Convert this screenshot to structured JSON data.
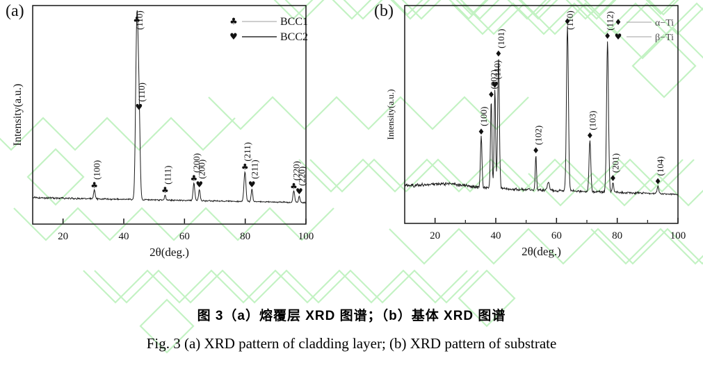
{
  "figure": {
    "panel_a_label": "(a)",
    "panel_b_label": "(b)",
    "caption_zh": "图 3（a）熔覆层 XRD 图谱；（b）基体 XRD 图谱",
    "caption_en": "Fig. 3 (a) XRD pattern of cladding layer; (b) XRD pattern of substrate"
  },
  "colors": {
    "curve": "#1b1b1b",
    "axis": "#151515",
    "text": "#111111",
    "watermark": "#c3f2c3",
    "legend_line_bcc1": "#bdbdbd",
    "legend_line_bcc2": "#2b2b2b",
    "legend_line_alpha_ti": "#9f9f9f",
    "legend_line_beta_ti": "#9f9f9f",
    "legend_label_b": "#4a4a4a"
  },
  "chart_data": [
    {
      "type": "line",
      "panel": "(a)",
      "title": "",
      "xlabel": "2θ(deg.)",
      "ylabel": "Intensity(a.u.)",
      "xlim": [
        10,
        100
      ],
      "xticks": [
        20,
        40,
        60,
        80,
        100
      ],
      "minor_xticks": [],
      "yticks": [],
      "grid": false,
      "legend": {
        "position": "top-right",
        "entries": [
          {
            "symbol": "♣",
            "label": "BCC1"
          },
          {
            "symbol": "♥",
            "label": "BCC2"
          }
        ]
      },
      "peaks": [
        {
          "two_theta": 30.3,
          "rel_intensity": 0.05,
          "width_deg": 0.35,
          "hkl": "(100)",
          "phase_symbol": "♣",
          "phase": "BCC1"
        },
        {
          "two_theta": 44.3,
          "rel_intensity": 1.0,
          "width_deg": 0.55,
          "hkl": "(110)",
          "phase_symbol": "♣",
          "phase": "BCC1"
        },
        {
          "two_theta": 45.0,
          "rel_intensity": 0.5,
          "width_deg": 0.5,
          "hkl": "(110)",
          "phase_symbol": "♥",
          "phase": "BCC2"
        },
        {
          "two_theta": 53.6,
          "rel_intensity": 0.03,
          "width_deg": 0.3,
          "hkl": "(111)",
          "phase_symbol": "♣",
          "phase": "BCC1"
        },
        {
          "two_theta": 63.1,
          "rel_intensity": 0.1,
          "width_deg": 0.4,
          "hkl": "(200)",
          "phase_symbol": "♣",
          "phase": "BCC1"
        },
        {
          "two_theta": 64.9,
          "rel_intensity": 0.065,
          "width_deg": 0.35,
          "hkl": "(200)",
          "phase_symbol": "♥",
          "phase": "BCC2"
        },
        {
          "two_theta": 79.9,
          "rel_intensity": 0.17,
          "width_deg": 0.45,
          "hkl": "(211)",
          "phase_symbol": "♣",
          "phase": "BCC1"
        },
        {
          "two_theta": 82.2,
          "rel_intensity": 0.07,
          "width_deg": 0.35,
          "hkl": "(211)",
          "phase_symbol": "♥",
          "phase": "BCC2"
        },
        {
          "two_theta": 96.0,
          "rel_intensity": 0.065,
          "width_deg": 0.4,
          "hkl": "(220)",
          "phase_symbol": "♣",
          "phase": "BCC1"
        },
        {
          "two_theta": 97.8,
          "rel_intensity": 0.035,
          "width_deg": 0.35,
          "hkl": "(220)",
          "phase_symbol": "♥",
          "phase": "BCC2"
        }
      ]
    },
    {
      "type": "line",
      "panel": "(b)",
      "title": "",
      "xlabel": "2θ(deg.)",
      "ylabel": "Intensity(a.u.)",
      "xlim": [
        10,
        100
      ],
      "xticks": [
        20,
        40,
        60,
        80,
        100
      ],
      "minor_xticks": [
        30,
        50,
        70,
        90
      ],
      "yticks": [],
      "grid": false,
      "legend": {
        "position": "top-right",
        "entries": [
          {
            "symbol": "♦",
            "label": "α−Ti"
          },
          {
            "symbol": "♥",
            "label": "β−Ti"
          }
        ]
      },
      "peaks": [
        {
          "two_theta": 35.2,
          "rel_intensity": 0.31,
          "width_deg": 0.35,
          "hkl": "(100)",
          "phase_symbol": "♦",
          "phase": "α-Ti"
        },
        {
          "two_theta": 38.5,
          "rel_intensity": 0.54,
          "width_deg": 0.35,
          "hkl": "(002)",
          "phase_symbol": "♦",
          "phase": "α-Ti"
        },
        {
          "two_theta": 39.7,
          "rel_intensity": 0.6,
          "width_deg": 0.35,
          "hkl": "(110)",
          "phase_symbol": "♥",
          "phase": "β-Ti"
        },
        {
          "two_theta": 40.9,
          "rel_intensity": 0.79,
          "width_deg": 0.4,
          "hkl": "(101)",
          "phase_symbol": "♦",
          "phase": "α-Ti"
        },
        {
          "two_theta": 53.2,
          "rel_intensity": 0.21,
          "width_deg": 0.3,
          "hkl": "(102)",
          "phase_symbol": "♦",
          "phase": "α-Ti"
        },
        {
          "two_theta": 57.3,
          "rel_intensity": 0.05,
          "width_deg": 0.5,
          "hkl": "",
          "phase_symbol": "",
          "phase": ""
        },
        {
          "two_theta": 63.6,
          "rel_intensity": 1.0,
          "width_deg": 0.45,
          "hkl": "(110)",
          "phase_symbol": "♦",
          "phase": "α-Ti"
        },
        {
          "two_theta": 71.0,
          "rel_intensity": 0.31,
          "width_deg": 0.4,
          "hkl": "(103)",
          "phase_symbol": "♦",
          "phase": "α-Ti"
        },
        {
          "two_theta": 76.8,
          "rel_intensity": 0.92,
          "width_deg": 0.45,
          "hkl": "(112)",
          "phase_symbol": "♦",
          "phase": "α-Ti"
        },
        {
          "two_theta": 78.6,
          "rel_intensity": 0.055,
          "width_deg": 0.35,
          "hkl": "(201)",
          "phase_symbol": "♦",
          "phase": "α-Ti"
        },
        {
          "two_theta": 93.4,
          "rel_intensity": 0.045,
          "width_deg": 0.4,
          "hkl": "(104)",
          "phase_symbol": "♦",
          "phase": "α-Ti"
        }
      ]
    }
  ]
}
